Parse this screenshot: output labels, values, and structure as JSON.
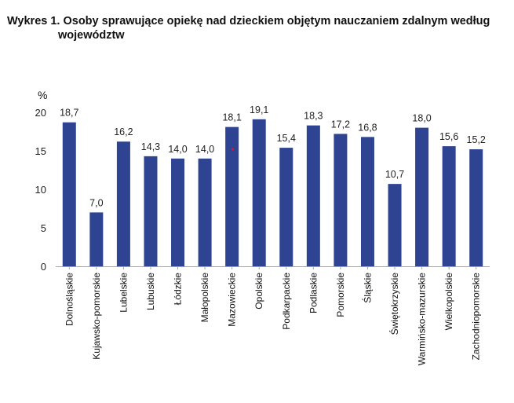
{
  "title_line1": "Wykres 1. Osoby sprawujące opiekę nad dzieckiem objętym nauczaniem zdalnym według",
  "title_line2": "województw",
  "colors": {
    "bar": "#2e4391",
    "axis": "#a6a6a6",
    "marker": "#e8112d"
  },
  "chart_data": {
    "type": "bar",
    "title": "Wykres 1. Osoby sprawujące opiekę nad dzieckiem objętym nauczaniem zdalnym według województw",
    "ylabel": "%",
    "xlabel": "",
    "ylim": [
      0,
      20
    ],
    "yticks": [
      0,
      5,
      10,
      15,
      20
    ],
    "grid": false,
    "categories": [
      "Dolnośląskie",
      "Kujawsko-pomorskie",
      "Lubelskie",
      "Lubuskie",
      "Łódzkie",
      "Małopolskie",
      "Mazowieckie",
      "Opolskie",
      "Podkarpackie",
      "Podlaskie",
      "Pomorskie",
      "Śląskie",
      "Świętokrzyskie",
      "Warmińsko-mazurskie",
      "Wielkopolskie",
      "Zachodniopomorskie"
    ],
    "values": [
      18.7,
      7.0,
      16.2,
      14.3,
      14.0,
      14.0,
      18.1,
      19.1,
      15.4,
      18.3,
      17.2,
      16.8,
      10.7,
      18.0,
      15.6,
      15.2
    ],
    "value_labels": [
      "18,7",
      "7,0",
      "16,2",
      "14,3",
      "14,0",
      "14,0",
      "18,1",
      "19,1",
      "15,4",
      "18,3",
      "17,2",
      "16,8",
      "10,7",
      "18,0",
      "15,6",
      "15,2"
    ],
    "ytick_labels": [
      "0",
      "5",
      "10",
      "15",
      "20"
    ]
  }
}
